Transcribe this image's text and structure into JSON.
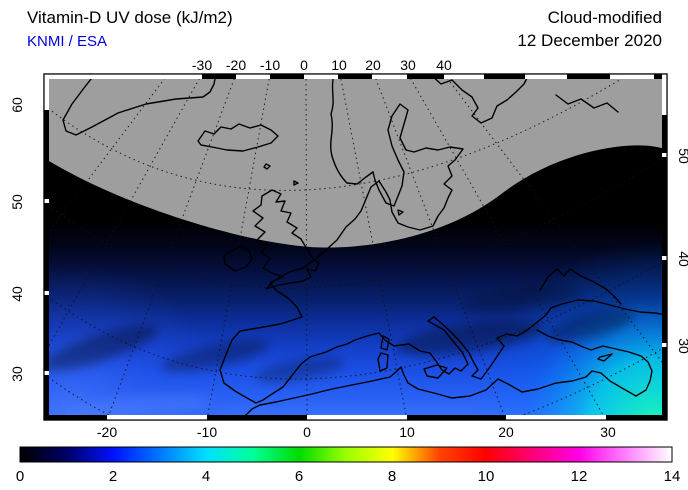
{
  "header": {
    "title": "Vitamin-D UV dose (kJ/m2)",
    "subtitle": "KNMI / ESA",
    "subtitle_color": "#0000dd",
    "right_line1": "Cloud-modified",
    "right_line2": "12 December 2020"
  },
  "map": {
    "description": "Europe / North Africa conic map of vitamin-D UV dose",
    "polar_night_color": "#9e9e9e",
    "coastline_color": "#000000",
    "low_dose_color": "#000000",
    "high_dose_corner_color": "#00ffb0"
  },
  "axes": {
    "top": [
      "-30",
      "-20",
      "-10",
      "0",
      "10",
      "20",
      "30",
      "40"
    ],
    "bottom": [
      "-20",
      "-10",
      "0",
      "10",
      "20",
      "30"
    ],
    "left": [
      "60",
      "50",
      "40",
      "30"
    ],
    "right": [
      "50",
      "40",
      "30"
    ]
  },
  "colorbar": {
    "unit": "kJ/m2",
    "min": 0,
    "max": 14,
    "ticks": [
      "0",
      "2",
      "4",
      "6",
      "8",
      "10",
      "12",
      "14"
    ],
    "gradient": [
      "#000000",
      "#000066",
      "#0011ff",
      "#0077ff",
      "#00e0ff",
      "#00ff99",
      "#00dd00",
      "#9aff00",
      "#ffff00",
      "#ff4400",
      "#ff0000",
      "#ff0077",
      "#ff00e6",
      "#ff80ff",
      "#ffffff"
    ]
  }
}
